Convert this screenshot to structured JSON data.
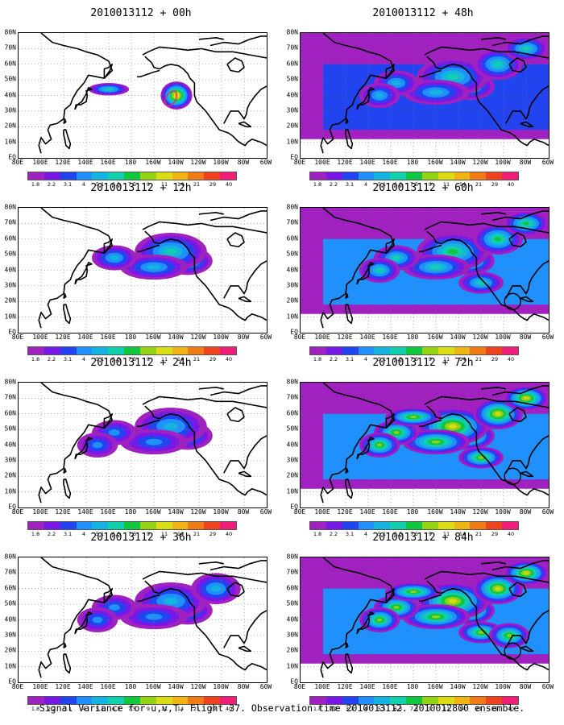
{
  "caption": "Signal Variance for u,v,T. Flight 37. Observation time 2010013112. 2010012800 ensemble.",
  "lat_labels": [
    "80N",
    "70N",
    "60N",
    "50N",
    "40N",
    "30N",
    "20N",
    "10N",
    "EQ"
  ],
  "lon_labels": [
    "80E",
    "100E",
    "120E",
    "140E",
    "160E",
    "180",
    "160W",
    "140W",
    "120W",
    "100W",
    "80W",
    "60W"
  ],
  "colorbar": {
    "labels": [
      "1.8",
      "2.2",
      "3.1",
      "4",
      "5.1",
      "6.3",
      "7.5",
      "9",
      "11",
      "14",
      "21",
      "29",
      "40"
    ],
    "colors": [
      "#a020c0",
      "#7818e8",
      "#2244f0",
      "#1e90ff",
      "#14b4e0",
      "#10d0b0",
      "#10c840",
      "#94d214",
      "#dcdc14",
      "#f0b414",
      "#f07a14",
      "#f0421e",
      "#f01e78"
    ]
  },
  "panels": [
    {
      "title": "2010013112 + 00h",
      "intensity": 0
    },
    {
      "title": "2010013112 + 12h",
      "intensity": 1
    },
    {
      "title": "2010013112 + 24h",
      "intensity": 2
    },
    {
      "title": "2010013112 + 36h",
      "intensity": 3
    },
    {
      "title": "2010013112 + 48h",
      "intensity": 4
    },
    {
      "title": "2010013112 + 60h",
      "intensity": 5
    },
    {
      "title": "2010013112 + 72h",
      "intensity": 6
    },
    {
      "title": "2010013112 + 84h",
      "intensity": 7
    }
  ]
}
